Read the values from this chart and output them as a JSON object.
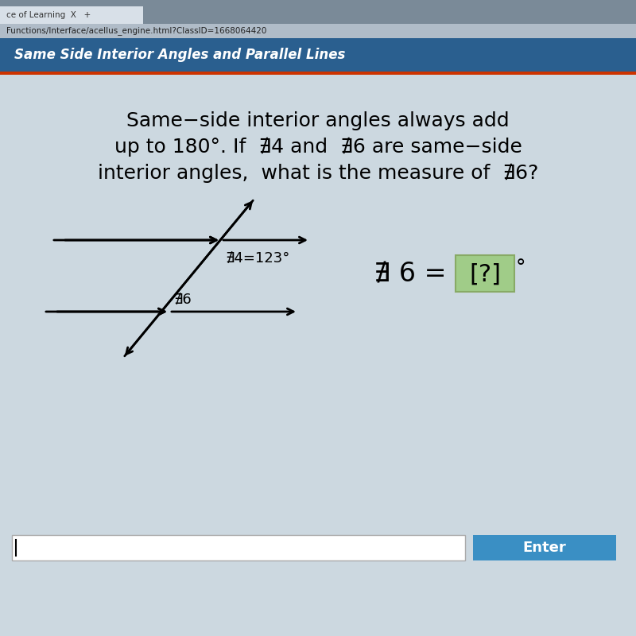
{
  "bg_main": "#c8d4dc",
  "bg_content": "#d4dce4",
  "header_bg": "#2a5f8f",
  "header_text": "Same Side Interior Angles and Parallel Lines",
  "browser_bar_color": "#9aaabb",
  "browser_url": "Functions/Interface/acellus_engine.html?ClassID=1668064420",
  "browser_tab": "ce of Learning  X   +",
  "main_text_line1": "Same−side interior angles always add",
  "main_text_line2": "up to 180°. If  ␈4 and  ␈6 are same−side",
  "main_text_line3": "interior angles,  what is the measure of  ␈6?",
  "angle4_label": "␈4=123°",
  "angle6_label": "␈6",
  "enter_button_color": "#3a8fc4",
  "enter_text": "Enter",
  "green_box_color": "#a0cc88",
  "line_color": "#000000",
  "text_color": "#000000",
  "header_red_line": "#cc3300"
}
